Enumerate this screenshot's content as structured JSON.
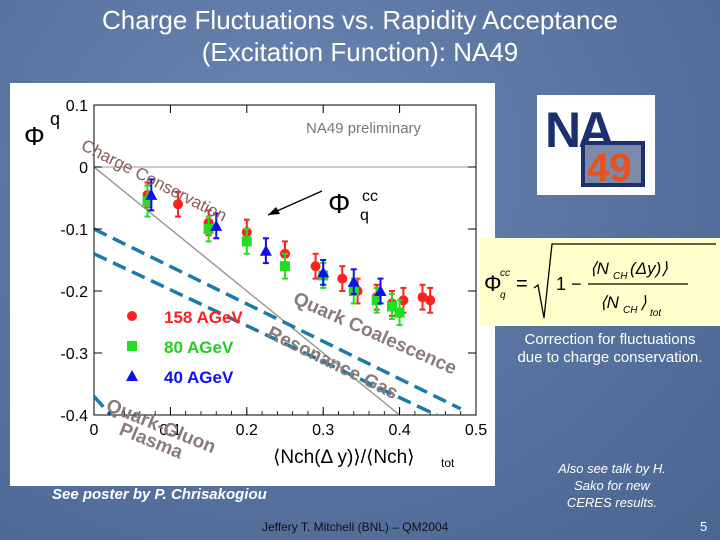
{
  "slide": {
    "title_line1": "Charge Fluctuations vs. Rapidity Acceptance",
    "title_line2": "(Excitation Function): NA49",
    "caption": "Correction for fluctuations due to charge conservation.",
    "also_line1": "Also see talk by H.",
    "also_line2": "Sako for new",
    "also_line3": "CERES results.",
    "poster": "See poster by P. Chrisakogiou",
    "footer": "Jeffery T. Mitchell (BNL) – QM2004",
    "page_number": "5"
  },
  "logo": {
    "top": "NA",
    "bottom": "49",
    "colors": {
      "frame": "#1c2f6e",
      "accent": "#e8501e"
    }
  },
  "formula": {
    "lhs_sym": "Φ",
    "lhs_sup": "cc",
    "lhs_sub": "q",
    "eq": "= ",
    "root_one": "1 −",
    "num": "⟨N",
    "num_sub": "CH",
    "num_tail": "(Δy)⟩",
    "den": "⟨N",
    "den_sub": "CH",
    "den_tail": "⟩",
    "den_sub2": "tot"
  },
  "chart_data": {
    "type": "scatter",
    "title": "",
    "ylabel": "Φq",
    "xlabel_main": "⟨Nch(Δ y)⟩/⟨Nch⟩",
    "xlabel_tot": "tot",
    "xlim": [
      0,
      0.5
    ],
    "ylim": [
      -0.4,
      0.1
    ],
    "x_ticks": [
      "0",
      "0.1",
      "0.2",
      "0.3",
      "0.4",
      "0.5"
    ],
    "y_ticks": [
      "0.1",
      "0",
      "-0.1",
      "-0.2",
      "-0.3",
      "-0.4"
    ],
    "grid": false,
    "legend_position": "lower-left",
    "preliminary_label": "NA49 preliminary",
    "charge_cons_label": "Charge Conservation",
    "phi_cc_label": "Φ",
    "phi_cc_sup": "cc",
    "phi_cc_sub": "q",
    "qcg_label": "Quark Coalescence",
    "rg_label": "Resonance Gas",
    "qgp_label_line1": "Quark-Gluon",
    "qgp_label_line2": "Plasma",
    "colors": {
      "red": "#ff2020",
      "green": "#22dd22",
      "blue": "#1010ee",
      "dash": "#1a7aa8",
      "gray": "#999999"
    },
    "reference_lines": [
      {
        "name": "zero-line",
        "type": "hline",
        "y": 0
      },
      {
        "name": "charge-conservation-line",
        "type": "line",
        "x": [
          0.0,
          0.5
        ],
        "y": [
          0.0,
          -0.5
        ]
      },
      {
        "name": "quark-coalescence-line",
        "type": "dashed",
        "x": [
          0.0,
          0.48
        ],
        "y": [
          -0.1,
          -0.39
        ]
      },
      {
        "name": "resonance-gas-line",
        "type": "dashed",
        "x": [
          0.0,
          0.5
        ],
        "y": [
          -0.14,
          -0.43
        ]
      },
      {
        "name": "quark-gluon-plasma-line",
        "type": "dashed",
        "x": [
          0.0,
          0.08
        ],
        "y": [
          -0.37,
          -0.48
        ]
      }
    ],
    "series": [
      {
        "name": "158 AGeV",
        "marker": "circle",
        "color": "#ff2020",
        "x": [
          0.07,
          0.11,
          0.15,
          0.2,
          0.25,
          0.29,
          0.325,
          0.345,
          0.37,
          0.39,
          0.405,
          0.43,
          0.44
        ],
        "y": [
          -0.045,
          -0.06,
          -0.09,
          -0.105,
          -0.14,
          -0.16,
          -0.18,
          -0.2,
          -0.21,
          -0.22,
          -0.215,
          -0.21,
          -0.215
        ],
        "err": [
          0.02,
          0.02,
          0.02,
          0.02,
          0.02,
          0.02,
          0.02,
          0.02,
          0.02,
          0.02,
          0.02,
          0.02,
          0.02
        ]
      },
      {
        "name": "80 AGeV",
        "marker": "square",
        "color": "#22dd22",
        "x": [
          0.07,
          0.15,
          0.2,
          0.25,
          0.3,
          0.34,
          0.37,
          0.39,
          0.4
        ],
        "y": [
          -0.055,
          -0.1,
          -0.12,
          -0.16,
          -0.175,
          -0.2,
          -0.215,
          -0.225,
          -0.235
        ],
        "err": [
          0.025,
          0.02,
          0.02,
          0.02,
          0.02,
          0.02,
          0.02,
          0.02,
          0.02
        ]
      },
      {
        "name": "40 AGeV",
        "marker": "triangle",
        "color": "#1010ee",
        "x": [
          0.075,
          0.16,
          0.225,
          0.3,
          0.34,
          0.375
        ],
        "y": [
          -0.045,
          -0.095,
          -0.135,
          -0.17,
          -0.185,
          -0.2
        ],
        "err": [
          0.025,
          0.02,
          0.02,
          0.02,
          0.02,
          0.02
        ]
      }
    ]
  }
}
